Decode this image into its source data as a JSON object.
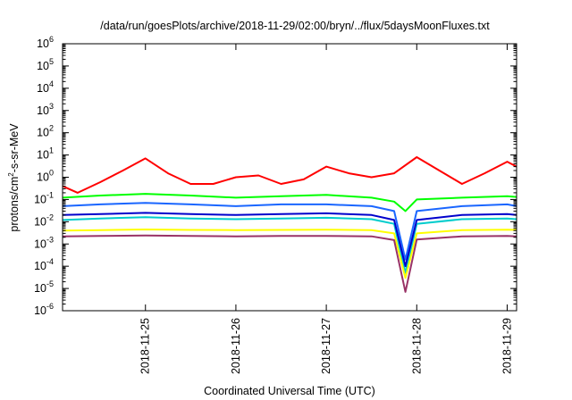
{
  "chart_data": {
    "type": "line",
    "title": "/data/run/goesPlots/archive/2018-11-29/02:00/bryn/../flux/5daysMoonFluxes.txt",
    "xlabel": "Coordinated Universal Time (UTC)",
    "ylabel_base": "protons/cm",
    "ylabel_sup": "2",
    "ylabel_rest": "-s-sr-MeV",
    "y_scale": "log",
    "ylim": [
      1e-06,
      1000000.0
    ],
    "xlim": [
      "2018-11-24T02:00",
      "2018-11-29T02:30"
    ],
    "y_ticks": [
      {
        "value": 1e-06,
        "mantissa": "10",
        "exp": "-6"
      },
      {
        "value": 1e-05,
        "mantissa": "10",
        "exp": "-5"
      },
      {
        "value": 0.0001,
        "mantissa": "10",
        "exp": "-4"
      },
      {
        "value": 0.001,
        "mantissa": "10",
        "exp": "-3"
      },
      {
        "value": 0.01,
        "mantissa": "10",
        "exp": "-2"
      },
      {
        "value": 0.1,
        "mantissa": "10",
        "exp": "-1"
      },
      {
        "value": 1,
        "mantissa": "10",
        "exp": "0"
      },
      {
        "value": 10,
        "mantissa": "10",
        "exp": "1"
      },
      {
        "value": 100,
        "mantissa": "10",
        "exp": "2"
      },
      {
        "value": 1000,
        "mantissa": "10",
        "exp": "3"
      },
      {
        "value": 10000,
        "mantissa": "10",
        "exp": "4"
      },
      {
        "value": 100000,
        "mantissa": "10",
        "exp": "5"
      },
      {
        "value": 1000000,
        "mantissa": "10",
        "exp": "6"
      }
    ],
    "x_ticks": [
      {
        "value": "2018-11-25T00:00",
        "label": "2018-11-25"
      },
      {
        "value": "2018-11-26T00:00",
        "label": "2018-11-26"
      },
      {
        "value": "2018-11-27T00:00",
        "label": "2018-11-27"
      },
      {
        "value": "2018-11-28T00:00",
        "label": "2018-11-28"
      },
      {
        "value": "2018-11-29T00:00",
        "label": "2018-11-29"
      }
    ],
    "grid": false,
    "legend": "none",
    "series": [
      {
        "color": "#ff0000",
        "x": [
          "2018-11-24T02:00",
          "2018-11-24T06:00",
          "2018-11-24T12:00",
          "2018-11-24T18:00",
          "2018-11-25T00:00",
          "2018-11-25T06:00",
          "2018-11-25T12:00",
          "2018-11-25T18:00",
          "2018-11-26T00:00",
          "2018-11-26T06:00",
          "2018-11-26T12:00",
          "2018-11-26T18:00",
          "2018-11-27T00:00",
          "2018-11-27T06:00",
          "2018-11-27T12:00",
          "2018-11-27T18:00",
          "2018-11-28T00:00",
          "2018-11-28T06:00",
          "2018-11-28T12:00",
          "2018-11-28T18:00",
          "2018-11-29T00:00",
          "2018-11-29T02:30"
        ],
        "y": [
          0.4,
          0.2,
          0.6,
          2.0,
          7.0,
          1.5,
          0.5,
          0.5,
          1.0,
          1.2,
          0.5,
          0.8,
          3.0,
          1.5,
          1.0,
          1.5,
          8.0,
          2.0,
          0.5,
          1.5,
          5.0,
          3.0
        ]
      },
      {
        "color": "#00ff00",
        "x": [
          "2018-11-24T02:00",
          "2018-11-24T12:00",
          "2018-11-25T00:00",
          "2018-11-25T12:00",
          "2018-11-26T00:00",
          "2018-11-26T12:00",
          "2018-11-27T00:00",
          "2018-11-27T12:00",
          "2018-11-27T18:00",
          "2018-11-27T21:00",
          "2018-11-28T00:00",
          "2018-11-28T12:00",
          "2018-11-29T00:00",
          "2018-11-29T02:30"
        ],
        "y": [
          0.12,
          0.15,
          0.18,
          0.15,
          0.12,
          0.14,
          0.16,
          0.12,
          0.08,
          0.03,
          0.1,
          0.12,
          0.14,
          0.13
        ]
      },
      {
        "color": "#1a66ff",
        "x": [
          "2018-11-24T02:00",
          "2018-11-24T12:00",
          "2018-11-25T00:00",
          "2018-11-25T12:00",
          "2018-11-26T00:00",
          "2018-11-26T12:00",
          "2018-11-27T00:00",
          "2018-11-27T12:00",
          "2018-11-27T18:00",
          "2018-11-27T21:00",
          "2018-11-28T00:00",
          "2018-11-28T12:00",
          "2018-11-29T00:00",
          "2018-11-29T02:30"
        ],
        "y": [
          0.05,
          0.06,
          0.07,
          0.06,
          0.05,
          0.06,
          0.06,
          0.05,
          0.03,
          0.0002,
          0.03,
          0.05,
          0.06,
          0.05
        ]
      },
      {
        "color": "#00cccc",
        "x": [
          "2018-11-24T02:00",
          "2018-11-24T12:00",
          "2018-11-25T00:00",
          "2018-11-25T12:00",
          "2018-11-26T00:00",
          "2018-11-26T12:00",
          "2018-11-27T00:00",
          "2018-11-27T12:00",
          "2018-11-27T18:00",
          "2018-11-27T21:00",
          "2018-11-28T00:00",
          "2018-11-28T12:00",
          "2018-11-29T00:00",
          "2018-11-29T02:30"
        ],
        "y": [
          0.012,
          0.014,
          0.016,
          0.014,
          0.013,
          0.014,
          0.015,
          0.013,
          0.008,
          5e-05,
          0.008,
          0.013,
          0.014,
          0.013
        ]
      },
      {
        "color": "#0000cc",
        "x": [
          "2018-11-24T02:00",
          "2018-11-24T12:00",
          "2018-11-25T00:00",
          "2018-11-25T12:00",
          "2018-11-26T00:00",
          "2018-11-26T12:00",
          "2018-11-27T00:00",
          "2018-11-27T12:00",
          "2018-11-27T18:00",
          "2018-11-27T21:00",
          "2018-11-28T00:00",
          "2018-11-28T12:00",
          "2018-11-29T00:00",
          "2018-11-29T02:30"
        ],
        "y": [
          0.02,
          0.022,
          0.025,
          0.022,
          0.02,
          0.022,
          0.024,
          0.02,
          0.012,
          0.0001,
          0.012,
          0.02,
          0.022,
          0.02
        ]
      },
      {
        "color": "#ffff00",
        "x": [
          "2018-11-24T02:00",
          "2018-11-24T12:00",
          "2018-11-25T00:00",
          "2018-11-25T12:00",
          "2018-11-26T00:00",
          "2018-11-26T12:00",
          "2018-11-27T00:00",
          "2018-11-27T12:00",
          "2018-11-27T18:00",
          "2018-11-27T21:00",
          "2018-11-28T00:00",
          "2018-11-28T12:00",
          "2018-11-29T00:00",
          "2018-11-29T02:30"
        ],
        "y": [
          0.004,
          0.0042,
          0.0045,
          0.0043,
          0.0042,
          0.0043,
          0.0044,
          0.0042,
          0.003,
          3e-05,
          0.003,
          0.0042,
          0.0044,
          0.0043
        ]
      },
      {
        "color": "#993366",
        "x": [
          "2018-11-24T02:00",
          "2018-11-24T12:00",
          "2018-11-25T00:00",
          "2018-11-25T12:00",
          "2018-11-26T00:00",
          "2018-11-26T12:00",
          "2018-11-27T00:00",
          "2018-11-27T12:00",
          "2018-11-27T18:00",
          "2018-11-27T21:00",
          "2018-11-28T00:00",
          "2018-11-28T12:00",
          "2018-11-29T00:00",
          "2018-11-29T02:30"
        ],
        "y": [
          0.0022,
          0.0023,
          0.0024,
          0.0023,
          0.0022,
          0.0023,
          0.0023,
          0.0022,
          0.0015,
          7e-06,
          0.0016,
          0.0022,
          0.0023,
          0.0022
        ]
      }
    ]
  }
}
